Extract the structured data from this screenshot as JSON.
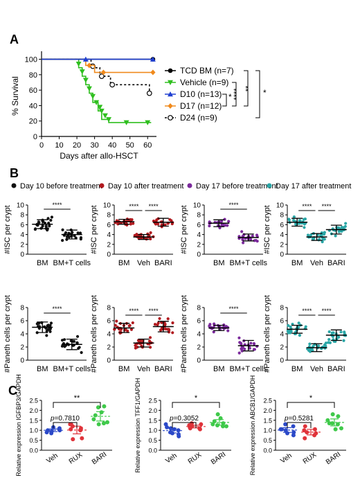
{
  "panels": {
    "A": "A",
    "B": "B",
    "C": "C"
  },
  "legend_b": [
    {
      "label": "Day 10 before treatment",
      "color": "#111111"
    },
    {
      "label": "Day 10 after treatment",
      "color": "#b0191e"
    },
    {
      "label": "Day 17 before treatment",
      "color": "#7b2a9c"
    },
    {
      "label": "Day 17 after treatment",
      "color": "#2aa6a6"
    }
  ],
  "stats_c": {
    "p1": "p=0.7810",
    "p2": "p=0.3052",
    "p3": "p=0.5281"
  },
  "chart_data": [
    {
      "type": "line",
      "id": "survival",
      "xlabel": "Days after allo-HSCT",
      "ylabel": "% Survival",
      "xlim": [
        0,
        65
      ],
      "ylim": [
        0,
        105
      ],
      "xticks": [
        0,
        10,
        20,
        30,
        40,
        50,
        60
      ],
      "yticks": [
        0,
        20,
        40,
        60,
        80,
        100
      ],
      "series": [
        {
          "name": "TCD BM (n=7)",
          "color": "#000000",
          "marker": "circle",
          "points": [
            [
              0,
              100
            ],
            [
              63,
              100
            ]
          ],
          "markers": [
            [
              63,
              100
            ]
          ]
        },
        {
          "name": "Vehicle (n=9)",
          "color": "#2fbf1f",
          "marker": "triangle-down",
          "points": [
            [
              0,
              100
            ],
            [
              21,
              100
            ],
            [
              21,
              89
            ],
            [
              23,
              89
            ],
            [
              23,
              78
            ],
            [
              25,
              78
            ],
            [
              25,
              67
            ],
            [
              27,
              67
            ],
            [
              27,
              56
            ],
            [
              29,
              56
            ],
            [
              29,
              44
            ],
            [
              32,
              44
            ],
            [
              32,
              33
            ],
            [
              34,
              33
            ],
            [
              34,
              22
            ],
            [
              38,
              22
            ],
            [
              38,
              18
            ],
            [
              62,
              18
            ]
          ],
          "markers": [
            [
              21,
              94
            ],
            [
              23,
              84
            ],
            [
              25,
              73
            ],
            [
              27,
              62
            ],
            [
              29,
              52
            ],
            [
              31,
              44
            ],
            [
              33,
              38
            ],
            [
              34,
              33
            ],
            [
              36,
              27
            ],
            [
              38,
              22
            ],
            [
              48,
              18
            ],
            [
              60,
              18
            ]
          ]
        },
        {
          "name": "D10 (n=13)",
          "color": "#1f3fd1",
          "marker": "triangle-up",
          "points": [
            [
              0,
              100
            ],
            [
              63,
              100
            ]
          ],
          "markers": [
            [
              25,
              100
            ],
            [
              63,
              100
            ]
          ]
        },
        {
          "name": "D17 (n=12)",
          "color": "#f08a1c",
          "marker": "diamond",
          "points": [
            [
              0,
              100
            ],
            [
              25,
              100
            ],
            [
              25,
              92
            ],
            [
              30,
              92
            ],
            [
              30,
              83
            ],
            [
              63,
              83
            ]
          ],
          "markers": [
            [
              27,
              92
            ],
            [
              35,
              83
            ],
            [
              63,
              83
            ]
          ]
        },
        {
          "name": "D24 (n=9)",
          "color": "#000000",
          "marker": "open-circle",
          "dashed": true,
          "points": [
            [
              0,
              100
            ],
            [
              28,
              100
            ],
            [
              28,
              89
            ],
            [
              33,
              89
            ],
            [
              33,
              78
            ],
            [
              39,
              78
            ],
            [
              39,
              67
            ],
            [
              61,
              67
            ],
            [
              61,
              56
            ],
            [
              63,
              56
            ]
          ],
          "markers": [
            [
              29,
              91
            ],
            [
              34,
              78
            ],
            [
              40,
              67
            ],
            [
              61,
              56
            ]
          ]
        }
      ],
      "significance": [
        "****",
        "*",
        "**",
        "*"
      ]
    },
    {
      "type": "scatter",
      "id": "b1",
      "ylabel": "#ISC per crypt",
      "ylim": [
        0,
        10
      ],
      "yticks": [
        0,
        2,
        4,
        6,
        8,
        10
      ],
      "categories": [
        "BM",
        "BM+T cells"
      ],
      "color": "#111111",
      "means": [
        6.1,
        4.0
      ],
      "sds": [
        0.9,
        0.9
      ],
      "sig": [
        [
          "BM",
          "BM+T cells",
          "****"
        ]
      ]
    },
    {
      "type": "scatter",
      "id": "b2",
      "ylabel": "#ISC per crypt",
      "ylim": [
        0,
        10
      ],
      "yticks": [
        0,
        2,
        4,
        6,
        8,
        10
      ],
      "categories": [
        "BM",
        "Veh",
        "BARI"
      ],
      "color": "#b0191e",
      "means": [
        6.6,
        3.5,
        6.5
      ],
      "sds": [
        0.5,
        0.5,
        0.8
      ],
      "sig": [
        [
          "BM",
          "Veh",
          "****"
        ],
        [
          "Veh",
          "BARI",
          "****"
        ]
      ]
    },
    {
      "type": "scatter",
      "id": "b3",
      "ylabel": "#ISC per crypt",
      "ylim": [
        0,
        10
      ],
      "yticks": [
        0,
        2,
        4,
        6,
        8,
        10
      ],
      "categories": [
        "BM",
        "BM+T cells"
      ],
      "color": "#7b2a9c",
      "means": [
        6.3,
        3.4
      ],
      "sds": [
        0.7,
        0.7
      ],
      "sig": [
        [
          "BM",
          "BM+T cells",
          "****"
        ]
      ]
    },
    {
      "type": "scatter",
      "id": "b4",
      "ylabel": "#ISC per crypt",
      "ylim": [
        0,
        10
      ],
      "yticks": [
        0,
        2,
        4,
        6,
        8,
        10
      ],
      "categories": [
        "BM",
        "Veh",
        "BARI"
      ],
      "color": "#2aa6a6",
      "means": [
        6.5,
        3.5,
        5.0
      ],
      "sds": [
        0.8,
        0.7,
        0.9
      ],
      "sig": [
        [
          "BM",
          "Veh",
          "****"
        ],
        [
          "Veh",
          "BARI",
          "****"
        ]
      ]
    },
    {
      "type": "scatter",
      "id": "b5",
      "ylabel": "#Paneth cells per crypt",
      "ylim": [
        0,
        8
      ],
      "yticks": [
        0,
        2,
        4,
        6,
        8
      ],
      "categories": [
        "BM",
        "BM+T cells"
      ],
      "color": "#111111",
      "means": [
        5.0,
        2.4
      ],
      "sds": [
        0.8,
        0.8
      ],
      "sig": [
        [
          "BM",
          "BM+T cells",
          "****"
        ]
      ]
    },
    {
      "type": "scatter",
      "id": "b6",
      "ylabel": "#Paneth cells per crypt",
      "ylim": [
        0,
        8
      ],
      "yticks": [
        0,
        2,
        4,
        6,
        8
      ],
      "categories": [
        "BM",
        "Veh",
        "BARI"
      ],
      "color": "#b0191e",
      "means": [
        4.9,
        2.6
      ],
      "sds": [
        0.7,
        0.6
      ],
      "sig": [
        [
          "BM",
          "Veh",
          "****"
        ],
        [
          "Veh",
          "BARI",
          "****"
        ]
      ],
      "means3": 5.1
    },
    {
      "type": "scatter",
      "id": "b7",
      "ylabel": "#Paneth cells per crypt",
      "ylim": [
        0,
        8
      ],
      "yticks": [
        0,
        2,
        4,
        6,
        8
      ],
      "categories": [
        "BM",
        "BM+T cells"
      ],
      "color": "#7b2a9c",
      "means": [
        4.9,
        2.2
      ],
      "sds": [
        0.4,
        0.8
      ],
      "sig": [
        [
          "BM",
          "BM+T cells",
          "****"
        ]
      ]
    },
    {
      "type": "scatter",
      "id": "b8",
      "ylabel": "#Paneth cells per crypt",
      "ylim": [
        0,
        8
      ],
      "yticks": [
        0,
        2,
        4,
        6,
        8
      ],
      "categories": [
        "BM",
        "Veh",
        "BARI"
      ],
      "color": "#2aa6a6",
      "means": [
        4.7,
        1.9,
        3.8
      ],
      "sds": [
        0.6,
        0.6,
        0.8
      ],
      "sig": [
        [
          "BM",
          "Veh",
          "****"
        ],
        [
          "Veh",
          "BARI",
          "****"
        ]
      ]
    },
    {
      "type": "scatter",
      "id": "c1",
      "ylabel": "Relative expression IGFBP3/GAPDH",
      "ylim": [
        0,
        2.5
      ],
      "yticks": [
        0.0,
        0.5,
        1.0,
        1.5,
        2.0,
        2.5
      ],
      "categories": [
        "Veh",
        "RUX",
        "BARI"
      ],
      "points": [
        [
          1.05,
          1.0,
          0.9,
          0.95,
          1.1,
          1.0,
          0.85,
          1.15
        ],
        [
          1.3,
          0.6,
          1.0,
          1.3,
          0.55,
          1.05,
          1.1,
          1.2
        ],
        [
          2.15,
          2.2,
          1.3,
          1.35,
          1.9,
          1.55,
          1.75,
          1.4
        ]
      ],
      "colors": [
        "#2b49c8",
        "#e0333a",
        "#3fc94a"
      ],
      "sig": [
        [
          "Veh",
          "RUX",
          "p=0.7810"
        ],
        [
          "Veh",
          "BARI",
          "**"
        ]
      ]
    },
    {
      "type": "scatter",
      "id": "c2",
      "ylabel": "Relative expression TFF1/GAPDH",
      "ylim": [
        0,
        2.5
      ],
      "yticks": [
        0.0,
        0.5,
        1.0,
        1.5,
        2.0,
        2.5
      ],
      "categories": [
        "Veh",
        "RUX",
        "BARI"
      ],
      "points": [
        [
          1.0,
          0.7,
          1.3,
          1.1,
          0.8,
          1.15,
          0.9,
          0.85,
          1.05
        ],
        [
          1.1,
          1.3,
          1.1,
          1.25,
          1.2,
          1.15,
          1.05,
          1.35
        ],
        [
          1.25,
          1.35,
          1.8,
          1.2,
          1.6,
          1.3,
          1.45,
          1.2
        ]
      ],
      "colors": [
        "#2b49c8",
        "#e0333a",
        "#3fc94a"
      ],
      "sig": [
        [
          "Veh",
          "RUX",
          "p=0.3052"
        ],
        [
          "Veh",
          "BARI",
          "*"
        ]
      ]
    },
    {
      "type": "scatter",
      "id": "c3",
      "ylabel": "Relative expression ABCB1/GAPDH",
      "ylim": [
        0,
        2.5
      ],
      "yticks": [
        0.0,
        0.5,
        1.0,
        1.5,
        2.0,
        2.5
      ],
      "categories": [
        "Veh",
        "RUX",
        "BARI"
      ],
      "points": [
        [
          1.2,
          0.9,
          1.05,
          1.0,
          0.75,
          1.05,
          1.3,
          0.85
        ],
        [
          1.2,
          0.85,
          0.75,
          1.0,
          0.9,
          0.6,
          1.05
        ],
        [
          1.35,
          1.7,
          1.8,
          1.3,
          1.05,
          1.5,
          1.35,
          1.1
        ]
      ],
      "colors": [
        "#2b49c8",
        "#e0333a",
        "#3fc94a"
      ],
      "sig": [
        [
          "Veh",
          "RUX",
          "p=0.5281"
        ],
        [
          "Veh",
          "BARI",
          "*"
        ]
      ]
    }
  ]
}
